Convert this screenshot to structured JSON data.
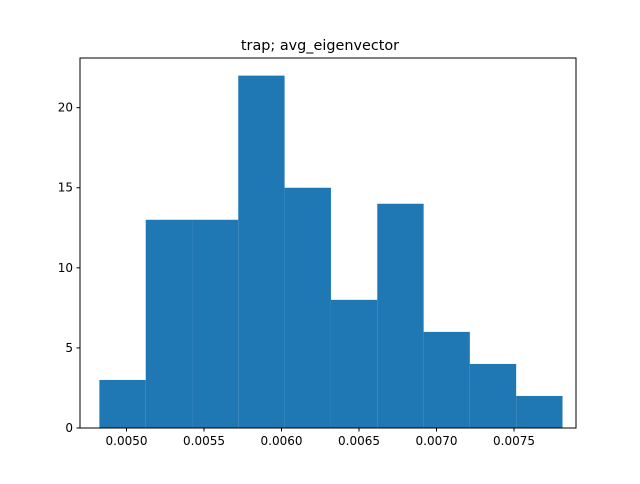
{
  "chart_data": {
    "type": "bar",
    "title": "trap; avg_eigenvector",
    "xlabel": "",
    "ylabel": "",
    "bin_edges": [
      0.004825,
      0.005124,
      0.005423,
      0.005721,
      0.00602,
      0.006319,
      0.006618,
      0.006917,
      0.007215,
      0.007514,
      0.007813
    ],
    "values": [
      3,
      13,
      13,
      22,
      15,
      8,
      14,
      6,
      4,
      2
    ],
    "xlim": [
      0.0047,
      0.0079
    ],
    "ylim": [
      0,
      23.1
    ],
    "xticks": [
      0.005,
      0.0055,
      0.006,
      0.0065,
      0.007,
      0.0075
    ],
    "xtick_labels": [
      "0.0050",
      "0.0055",
      "0.0060",
      "0.0065",
      "0.0070",
      "0.0075"
    ],
    "yticks": [
      0,
      5,
      10,
      15,
      20
    ],
    "ytick_labels": [
      "0",
      "5",
      "10",
      "15",
      "20"
    ],
    "bar_color": "#1f77b4",
    "grid": false,
    "legend": "none"
  }
}
